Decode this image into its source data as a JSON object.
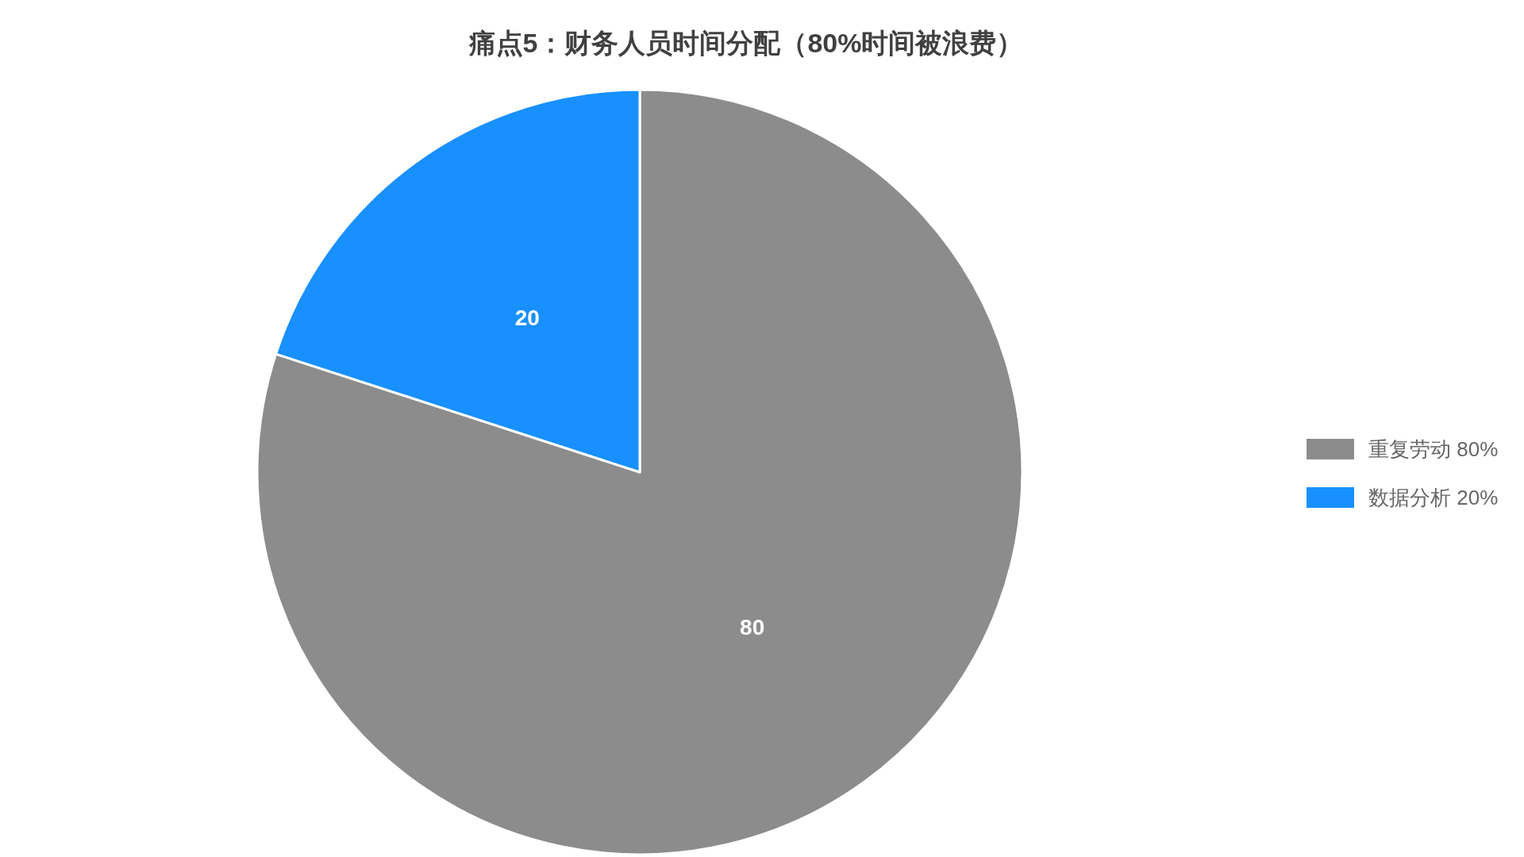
{
  "chart_data": {
    "type": "pie",
    "title": "痛点5：财务人员时间分配（80%时间被浪费）",
    "categories": [
      "重复劳动 80%",
      "数据分析 20%"
    ],
    "values": [
      80,
      20
    ],
    "colors": [
      "#8c8c8c",
      "#1890ff"
    ],
    "data_labels": true,
    "legend": "right"
  }
}
